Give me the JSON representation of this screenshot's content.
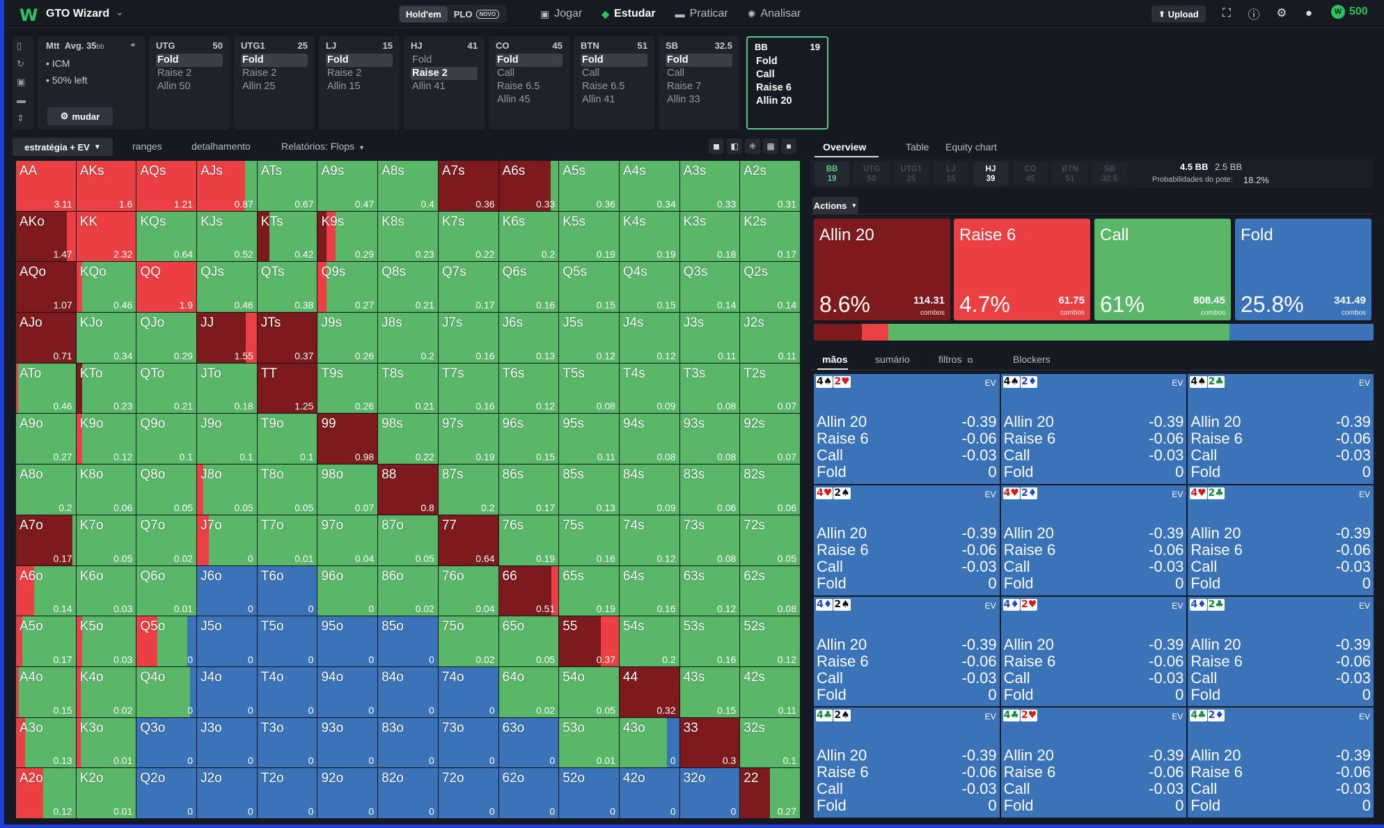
{
  "app": {
    "title": "GTO Wizard",
    "logo": "W"
  },
  "game_tabs": [
    {
      "label": "Hold'em",
      "active": true
    },
    {
      "label": "PLO",
      "badge": "NOVO",
      "active": false
    }
  ],
  "nav": [
    {
      "label": "Jogar",
      "icon": "cards-icon",
      "glyph": "🂠",
      "active": false
    },
    {
      "label": "Estudar",
      "icon": "graduation-cap-icon",
      "glyph": "◈",
      "active": true
    },
    {
      "label": "Praticar",
      "icon": "gamepad-icon",
      "glyph": "🎮",
      "active": false
    },
    {
      "label": "Analisar",
      "icon": "lightbulb-icon",
      "glyph": "✺",
      "active": false
    }
  ],
  "topbar": {
    "upload_label": "Upload",
    "coins": "500"
  },
  "mtt": {
    "title": "Mtt",
    "avg": "Avg. 35",
    "avg_unit": "bb",
    "bullets": [
      "• ICM",
      "• 50% left"
    ],
    "change_label": "mudar"
  },
  "positions": [
    {
      "name": "UTG",
      "stack": "50",
      "actions": [
        "Fold",
        "Raise 2",
        "Allin 50"
      ],
      "highlight": 0
    },
    {
      "name": "UTG1",
      "stack": "25",
      "actions": [
        "Fold",
        "Raise 2",
        "Allin 25"
      ],
      "highlight": 0
    },
    {
      "name": "LJ",
      "stack": "15",
      "actions": [
        "Fold",
        "Raise 2",
        "Allin 15"
      ],
      "highlight": 0
    },
    {
      "name": "HJ",
      "stack": "41",
      "actions": [
        "Fold",
        "Raise 2",
        "Allin 41"
      ],
      "highlight": 1
    },
    {
      "name": "CO",
      "stack": "45",
      "actions": [
        "Fold",
        "Call",
        "Raise 6.5",
        "Allin 45"
      ],
      "highlight": 0
    },
    {
      "name": "BTN",
      "stack": "51",
      "actions": [
        "Fold",
        "Call",
        "Raise 6.5",
        "Allin 41"
      ],
      "highlight": 0
    },
    {
      "name": "SB",
      "stack": "32.5",
      "actions": [
        "Fold",
        "Call",
        "Raise 7",
        "Allin 33"
      ],
      "highlight": 0
    },
    {
      "name": "BB",
      "stack": "19",
      "actions": [
        "Fold",
        "Call",
        "Raise 6",
        "Allin 20"
      ],
      "highlight": -1,
      "selected": true
    }
  ],
  "grid_toolbar": {
    "strategy": "estratégia + EV",
    "ranges": "ranges",
    "detail": "detalhamento",
    "reports": "Relatórios: Flops"
  },
  "colors": {
    "allin": "#7d1a1d",
    "raise": "#ea3f43",
    "call": "#58b868",
    "fold": "#3a73b8"
  },
  "grid": {
    "hands": [
      [
        "AA",
        "AKs",
        "AQs",
        "AJs",
        "ATs",
        "A9s",
        "A8s",
        "A7s",
        "A6s",
        "A5s",
        "A4s",
        "A3s",
        "A2s"
      ],
      [
        "AKo",
        "KK",
        "KQs",
        "KJs",
        "KTs",
        "K9s",
        "K8s",
        "K7s",
        "K6s",
        "K5s",
        "K4s",
        "K3s",
        "K2s"
      ],
      [
        "AQo",
        "KQo",
        "QQ",
        "QJs",
        "QTs",
        "Q9s",
        "Q8s",
        "Q7s",
        "Q6s",
        "Q5s",
        "Q4s",
        "Q3s",
        "Q2s"
      ],
      [
        "AJo",
        "KJo",
        "QJo",
        "JJ",
        "JTs",
        "J9s",
        "J8s",
        "J7s",
        "J6s",
        "J5s",
        "J4s",
        "J3s",
        "J2s"
      ],
      [
        "ATo",
        "KTo",
        "QTo",
        "JTo",
        "TT",
        "T9s",
        "T8s",
        "T7s",
        "T6s",
        "T5s",
        "T4s",
        "T3s",
        "T2s"
      ],
      [
        "A9o",
        "K9o",
        "Q9o",
        "J9o",
        "T9o",
        "99",
        "98s",
        "97s",
        "96s",
        "95s",
        "94s",
        "93s",
        "92s"
      ],
      [
        "A8o",
        "K8o",
        "Q8o",
        "J8o",
        "T8o",
        "98o",
        "88",
        "87s",
        "86s",
        "85s",
        "84s",
        "83s",
        "82s"
      ],
      [
        "A7o",
        "K7o",
        "Q7o",
        "J7o",
        "T7o",
        "97o",
        "87o",
        "77",
        "76s",
        "75s",
        "74s",
        "73s",
        "72s"
      ],
      [
        "A6o",
        "K6o",
        "Q6o",
        "J6o",
        "T6o",
        "96o",
        "86o",
        "76o",
        "66",
        "65s",
        "64s",
        "63s",
        "62s"
      ],
      [
        "A5o",
        "K5o",
        "Q5o",
        "J5o",
        "T5o",
        "95o",
        "85o",
        "75o",
        "65o",
        "55",
        "54s",
        "53s",
        "52s"
      ],
      [
        "A4o",
        "K4o",
        "Q4o",
        "J4o",
        "T4o",
        "94o",
        "84o",
        "74o",
        "64o",
        "54o",
        "44",
        "43s",
        "42s"
      ],
      [
        "A3o",
        "K3o",
        "Q3o",
        "J3o",
        "T3o",
        "93o",
        "83o",
        "73o",
        "63o",
        "53o",
        "43o",
        "33",
        "32s"
      ],
      [
        "A2o",
        "K2o",
        "Q2o",
        "J2o",
        "T2o",
        "92o",
        "82o",
        "72o",
        "62o",
        "52o",
        "42o",
        "32o",
        "22"
      ]
    ],
    "ev": [
      [
        "3.11",
        "1.6",
        "1.21",
        "0.87",
        "0.67",
        "0.47",
        "0.4",
        "0.36",
        "0.33",
        "0.36",
        "0.34",
        "0.33",
        "0.31"
      ],
      [
        "1.47",
        "2.32",
        "0.64",
        "0.52",
        "0.42",
        "0.29",
        "0.23",
        "0.22",
        "0.2",
        "0.19",
        "0.19",
        "0.18",
        "0.17"
      ],
      [
        "1.07",
        "0.46",
        "1.9",
        "0.46",
        "0.38",
        "0.27",
        "0.21",
        "0.17",
        "0.16",
        "0.15",
        "0.15",
        "0.14",
        "0.14"
      ],
      [
        "0.71",
        "0.34",
        "0.29",
        "1.55",
        "0.37",
        "0.26",
        "0.2",
        "0.16",
        "0.13",
        "0.12",
        "0.12",
        "0.11",
        "0.11"
      ],
      [
        "0.46",
        "0.23",
        "0.21",
        "0.18",
        "1.25",
        "0.26",
        "0.21",
        "0.16",
        "0.12",
        "0.08",
        "0.09",
        "0.08",
        "0.07"
      ],
      [
        "0.27",
        "0.12",
        "0.1",
        "0.1",
        "0.1",
        "0.98",
        "0.22",
        "0.19",
        "0.15",
        "0.11",
        "0.08",
        "0.08",
        "0.07"
      ],
      [
        "0.2",
        "0.06",
        "0.05",
        "0.05",
        "0.05",
        "0.07",
        "0.8",
        "0.2",
        "0.17",
        "0.13",
        "0.09",
        "0.06",
        "0.06"
      ],
      [
        "0.17",
        "0.05",
        "0.02",
        "0",
        "0.01",
        "0.04",
        "0.05",
        "0.64",
        "0.19",
        "0.16",
        "0.12",
        "0.08",
        "0.05"
      ],
      [
        "0.14",
        "0.03",
        "0.01",
        "0",
        "0",
        "0",
        "0.02",
        "0.04",
        "0.51",
        "0.19",
        "0.16",
        "0.12",
        "0.08"
      ],
      [
        "0.17",
        "0.03",
        "0",
        "0",
        "0",
        "0",
        "0",
        "0.02",
        "0.05",
        "0.37",
        "0.2",
        "0.16",
        "0.12"
      ],
      [
        "0.15",
        "0.02",
        "0",
        "0",
        "0",
        "0",
        "0",
        "0",
        "0.02",
        "0.05",
        "0.32",
        "0.15",
        "0.11"
      ],
      [
        "0.13",
        "0.01",
        "0",
        "0",
        "0",
        "0",
        "0",
        "0",
        "0",
        "0.01",
        "0",
        "0.3",
        "0.1"
      ],
      [
        "0.12",
        "0.01",
        "0",
        "0",
        "0",
        "0",
        "0",
        "0",
        "0",
        "0",
        "0",
        "0",
        "0.27"
      ]
    ]
  },
  "right_tabs": [
    "Overview",
    "Table",
    "Equity chart"
  ],
  "pos_row": [
    {
      "name": "BB",
      "stack": "19",
      "state": "current"
    },
    {
      "name": "UTG",
      "stack": "50",
      "state": "folded"
    },
    {
      "name": "UTG1",
      "stack": "25",
      "state": "folded"
    },
    {
      "name": "LJ",
      "stack": "15",
      "state": "folded"
    },
    {
      "name": "HJ",
      "stack": "39",
      "state": "active"
    },
    {
      "name": "CO",
      "stack": "45",
      "state": "folded"
    },
    {
      "name": "BTN",
      "stack": "51",
      "state": "folded"
    },
    {
      "name": "SB",
      "stack": "32.5",
      "state": "folded"
    }
  ],
  "pot": {
    "bb": "4.5 BB",
    "bb2": "2.5 BB",
    "label": "Probabilidades do pote:",
    "odds": "18.2%"
  },
  "actions_btn": "Actions",
  "actions": [
    {
      "name": "Allin 20",
      "pct": "8.6%",
      "combos": "114.31",
      "combos_label": "combos",
      "color": "#7d1a1d"
    },
    {
      "name": "Raise 6",
      "pct": "4.7%",
      "combos": "61.75",
      "combos_label": "combos",
      "color": "#ea3f43"
    },
    {
      "name": "Call",
      "pct": "61%",
      "combos": "808.45",
      "combos_label": "combos",
      "color": "#58b868"
    },
    {
      "name": "Fold",
      "pct": "25.8%",
      "combos": "341.49",
      "combos_label": "combos",
      "color": "#3a73b8"
    }
  ],
  "hand_tabs": [
    "mãos",
    "sumário",
    "filtros",
    "Blockers"
  ],
  "combo_cells": [
    {
      "c1": "4",
      "s1": "♠",
      "k1": "s",
      "c2": "2",
      "s2": "♥",
      "k2": "h"
    },
    {
      "c1": "4",
      "s1": "♠",
      "k1": "s",
      "c2": "2",
      "s2": "♦",
      "k2": "d"
    },
    {
      "c1": "4",
      "s1": "♠",
      "k1": "s",
      "c2": "2",
      "s2": "♣",
      "k2": "c"
    },
    {
      "c1": "4",
      "s1": "♥",
      "k1": "h",
      "c2": "2",
      "s2": "♠",
      "k2": "s"
    },
    {
      "c1": "4",
      "s1": "♥",
      "k1": "h",
      "c2": "2",
      "s2": "♦",
      "k2": "d"
    },
    {
      "c1": "4",
      "s1": "♥",
      "k1": "h",
      "c2": "2",
      "s2": "♣",
      "k2": "c"
    },
    {
      "c1": "4",
      "s1": "♦",
      "k1": "d",
      "c2": "2",
      "s2": "♠",
      "k2": "s"
    },
    {
      "c1": "4",
      "s1": "♦",
      "k1": "d",
      "c2": "2",
      "s2": "♥",
      "k2": "h"
    },
    {
      "c1": "4",
      "s1": "♦",
      "k1": "d",
      "c2": "2",
      "s2": "♣",
      "k2": "c"
    },
    {
      "c1": "4",
      "s1": "♣",
      "k1": "c",
      "c2": "2",
      "s2": "♠",
      "k2": "s"
    },
    {
      "c1": "4",
      "s1": "♣",
      "k1": "c",
      "c2": "2",
      "s2": "♥",
      "k2": "h"
    },
    {
      "c1": "4",
      "s1": "♣",
      "k1": "c",
      "c2": "2",
      "s2": "♦",
      "k2": "d"
    }
  ],
  "combo_ev_label": "EV",
  "combo_ev_rows": [
    {
      "action": "Allin 20",
      "ev": "-0.39"
    },
    {
      "action": "Raise 6",
      "ev": "-0.06"
    },
    {
      "action": "Call",
      "ev": "-0.03"
    },
    {
      "action": "Fold",
      "ev": "0"
    }
  ]
}
